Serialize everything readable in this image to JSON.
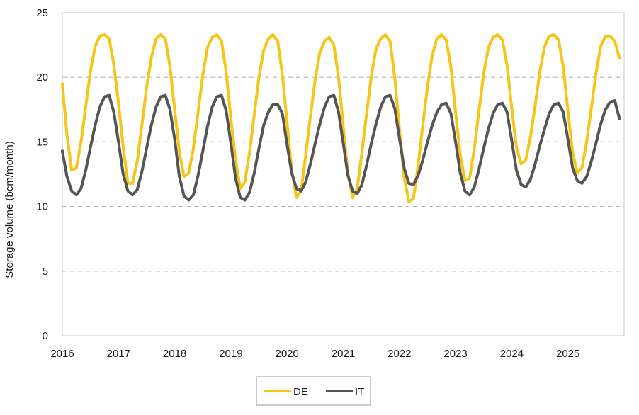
{
  "chart_data": {
    "type": "line",
    "title": "",
    "xlabel": "",
    "ylabel": "Storage volume (bcm/month)",
    "ylim": [
      0,
      25
    ],
    "xlim": [
      2016,
      2026
    ],
    "yticks": [
      "0",
      "5",
      "10",
      "15",
      "20",
      "25"
    ],
    "xticks": [
      "2016",
      "2017",
      "2018",
      "2019",
      "2020",
      "2021",
      "2022",
      "2023",
      "2024",
      "2025"
    ],
    "grid": "horizontal-dashed",
    "legend_position": "bottom",
    "series": [
      {
        "name": "DE",
        "color": "#F5C518",
        "x_start": 2016.0,
        "x_step_months": 1,
        "values": [
          19.5,
          15.5,
          12.8,
          13.0,
          15.0,
          17.7,
          20.5,
          22.4,
          23.2,
          23.3,
          23.0,
          21.0,
          18.0,
          14.6,
          11.8,
          11.8,
          13.5,
          16.3,
          19.2,
          21.5,
          23.0,
          23.3,
          23.0,
          20.8,
          17.5,
          14.2,
          12.3,
          12.6,
          14.5,
          17.3,
          20.2,
          22.3,
          23.1,
          23.3,
          22.8,
          20.4,
          16.8,
          13.6,
          11.4,
          11.9,
          14.2,
          17.1,
          20.0,
          22.1,
          23.0,
          23.3,
          22.8,
          20.2,
          16.5,
          12.8,
          10.7,
          11.2,
          14.0,
          17.0,
          19.8,
          21.9,
          22.8,
          23.1,
          22.5,
          20.0,
          16.2,
          12.6,
          10.7,
          11.4,
          14.2,
          17.2,
          20.1,
          22.2,
          23.0,
          23.3,
          22.8,
          20.0,
          16.0,
          12.3,
          10.4,
          10.6,
          13.2,
          16.3,
          19.3,
          21.7,
          23.0,
          23.3,
          22.9,
          20.8,
          17.3,
          14.0,
          12.0,
          12.2,
          14.5,
          17.4,
          20.3,
          22.3,
          23.1,
          23.3,
          22.9,
          20.9,
          17.6,
          14.6,
          13.3,
          13.6,
          15.4,
          17.8,
          20.4,
          22.4,
          23.2,
          23.3,
          22.9,
          20.8,
          17.4,
          14.2,
          12.6,
          13.0,
          15.0,
          17.6,
          20.3,
          22.4,
          23.2,
          23.2,
          22.8,
          21.5
        ]
      },
      {
        "name": "IT",
        "color": "#555555",
        "x_start": 2016.0,
        "x_step_months": 1,
        "values": [
          14.3,
          12.3,
          11.2,
          10.9,
          11.4,
          12.8,
          14.6,
          16.3,
          17.7,
          18.5,
          18.6,
          17.3,
          15.0,
          12.5,
          11.2,
          10.9,
          11.3,
          12.7,
          14.5,
          16.3,
          17.7,
          18.5,
          18.6,
          17.5,
          15.2,
          12.3,
          10.8,
          10.5,
          10.9,
          12.4,
          14.3,
          16.2,
          17.7,
          18.5,
          18.6,
          17.4,
          14.9,
          12.2,
          10.7,
          10.5,
          11.1,
          12.6,
          14.5,
          16.3,
          17.3,
          17.9,
          17.9,
          17.2,
          14.8,
          12.6,
          11.4,
          11.2,
          11.9,
          13.3,
          14.9,
          16.4,
          17.7,
          18.5,
          18.6,
          17.3,
          14.9,
          12.4,
          11.2,
          11.0,
          11.7,
          13.2,
          14.9,
          16.4,
          17.7,
          18.5,
          18.6,
          17.6,
          15.3,
          13.0,
          11.8,
          11.7,
          12.4,
          13.6,
          15.0,
          16.3,
          17.3,
          17.9,
          18.0,
          17.2,
          15.0,
          12.6,
          11.2,
          10.9,
          11.5,
          12.9,
          14.5,
          16.0,
          17.2,
          17.9,
          18.0,
          17.3,
          15.1,
          12.8,
          11.7,
          11.5,
          12.1,
          13.3,
          14.7,
          16.0,
          17.2,
          17.9,
          18.0,
          17.3,
          15.2,
          13.0,
          12.0,
          11.8,
          12.3,
          13.5,
          14.9,
          16.4,
          17.5,
          18.1,
          18.2,
          16.8
        ]
      }
    ]
  }
}
